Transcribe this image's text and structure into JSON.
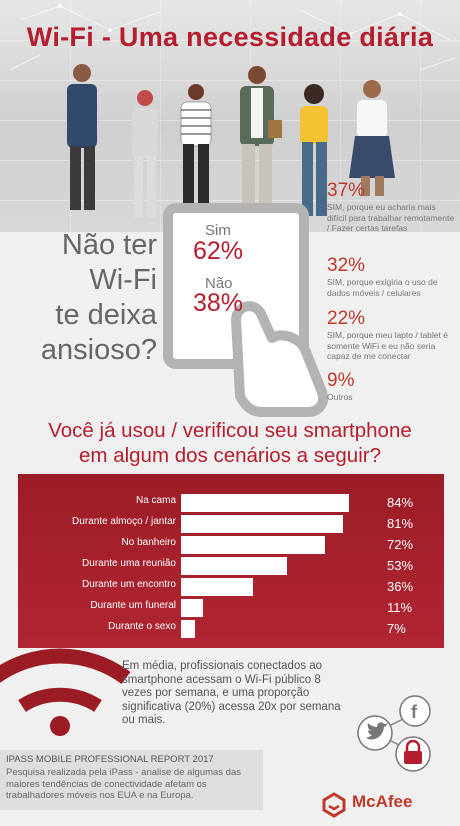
{
  "title": "Wi-Fi - Uma necessidade diária",
  "question": [
    "Não ter",
    "Wi-Fi",
    "te deixa",
    "ansioso?"
  ],
  "yes": {
    "label": "Sim",
    "value": "62%"
  },
  "no": {
    "label": "Não",
    "value": "38%"
  },
  "stats": [
    {
      "pct": "37%",
      "text": "SIM, porque eu acharia mais difícil para trabalhar remotamente / Fazer certas tarefas"
    },
    {
      "pct": "32%",
      "text": "SIM, porque exigiria o uso de dados móveis / celulares"
    },
    {
      "pct": "22%",
      "text": "SIM, porque meu lapto / tablet é somente WiFi e eu não seria capaz de me conectar"
    },
    {
      "pct": "9%",
      "text": "Outros"
    }
  ],
  "q2": [
    "Você já usou / verificou seu smartphone",
    "em algum dos cenários a seguir?"
  ],
  "chart_data": {
    "type": "bar",
    "orientation": "horizontal",
    "categories": [
      "Na cama",
      "Durante almoço / jantar",
      "No banheiro",
      "Durante uma reunião",
      "Durante um encontro",
      "Durante um funeral",
      "Durante o sexo"
    ],
    "values": [
      84,
      81,
      72,
      53,
      36,
      11,
      7
    ],
    "value_labels": [
      "84%",
      "81%",
      "72%",
      "53%",
      "36%",
      "11%",
      "7%"
    ],
    "unit": "%",
    "xlim": [
      0,
      100
    ]
  },
  "wifi_text": "Em média, profissionais conectados ao smartphone acessam o Wi-Fi público 8 vezes por semana, e uma proporção significativa (20%) acessa 20x por semana ou mais.",
  "report": {
    "title": "IPASS MOBILE PROFESSIONAL REPORT 2017",
    "body": "Pesquisa realizada pela iPass - analise de algumas das maiores tendências de conectividade afetam os trabalhadores móveis nos EUA e na Europa."
  },
  "brand": "McAfee",
  "icons": [
    "twitter-icon",
    "facebook-icon",
    "lock-icon",
    "share-network-icon",
    "wifi-icon",
    "mcafee-shield-icon"
  ],
  "colors": {
    "accent": "#b51e2e",
    "bar_panel": "#a3202b",
    "text": "#555555"
  }
}
